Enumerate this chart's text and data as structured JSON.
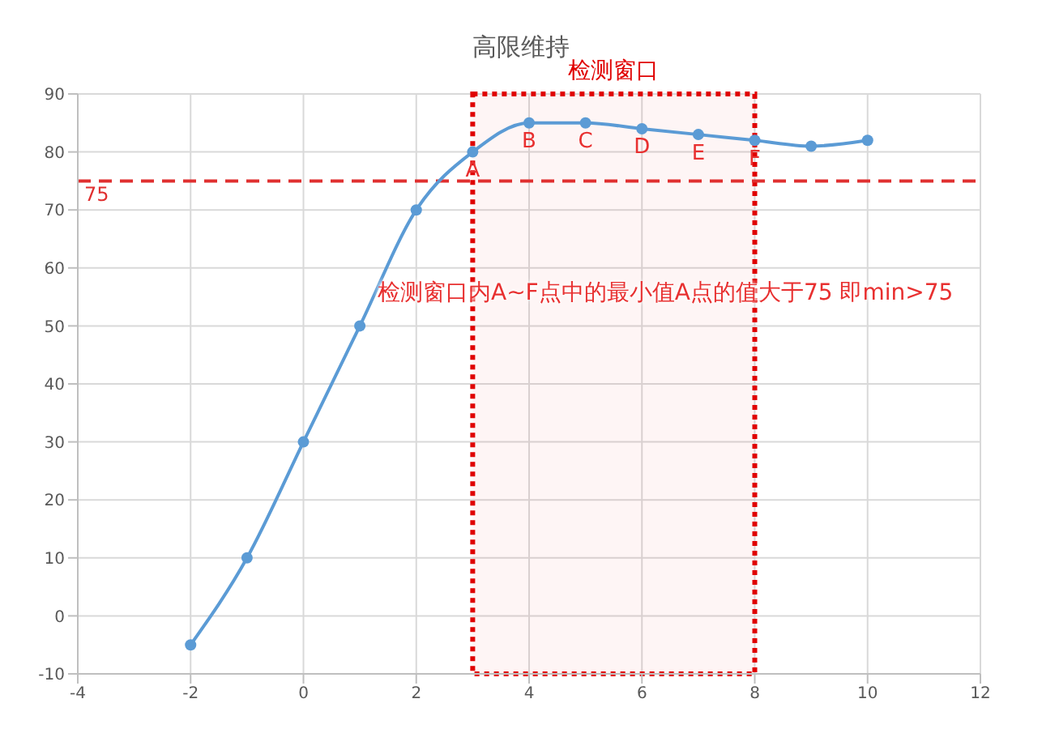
{
  "chart_data": {
    "type": "line",
    "title": "高限维持",
    "x": [
      -2,
      -1,
      0,
      1,
      2,
      3,
      4,
      5,
      6,
      7,
      8,
      9,
      10
    ],
    "series": [
      {
        "color": "#5b9bd5",
        "values": [
          -5,
          10,
          30,
          50,
          70,
          80,
          85,
          85,
          84,
          83,
          82,
          81,
          82
        ]
      }
    ],
    "xlim": [
      -4,
      12
    ],
    "xticks": [
      -4,
      -2,
      0,
      2,
      4,
      6,
      8,
      10,
      12
    ],
    "ylim": [
      -10,
      90
    ],
    "yticks": [
      -10,
      0,
      10,
      20,
      30,
      40,
      50,
      60,
      70,
      80,
      90
    ],
    "grid": true,
    "marker": "circle",
    "line_style": "solid",
    "legend": false,
    "ref_lines": [
      {
        "axis": "y",
        "value": 75,
        "label": "75",
        "color": "#e03030",
        "line_style": "dashed"
      }
    ],
    "bands": [
      {
        "axis": "x",
        "from": 3,
        "to": 8,
        "label": "检测窗口",
        "color": "#e00000"
      }
    ],
    "annotations": [
      {
        "text": "A",
        "x": 3,
        "y": 80
      },
      {
        "text": "B",
        "x": 4,
        "y": 85
      },
      {
        "text": "C",
        "x": 5,
        "y": 85
      },
      {
        "text": "D",
        "x": 6,
        "y": 84
      },
      {
        "text": "E",
        "x": 7,
        "y": 83
      },
      {
        "text": "F",
        "x": 8,
        "y": 82
      },
      "检测窗口内A~F点中的最小值A点的值大于75 即min>75"
    ]
  }
}
